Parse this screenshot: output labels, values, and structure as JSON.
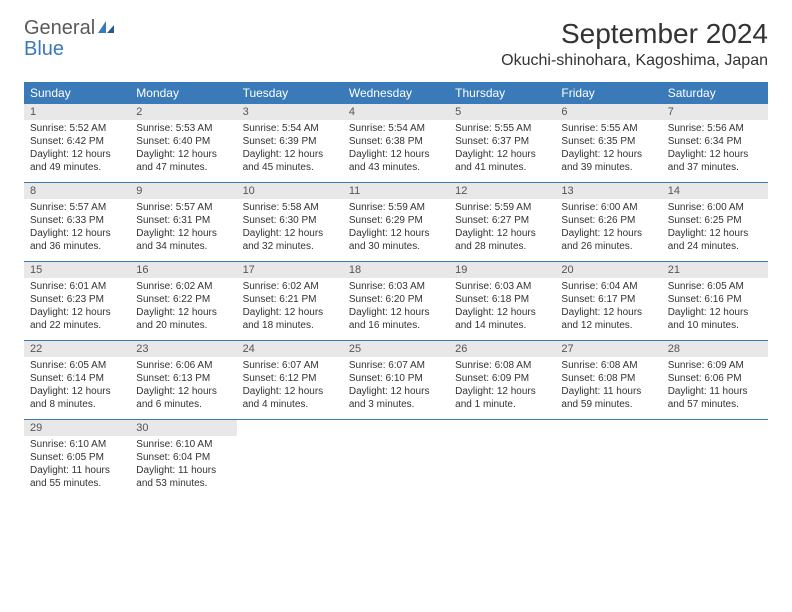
{
  "logo": {
    "text_general": "General",
    "text_blue": "Blue",
    "icon_color": "#3a7ab8"
  },
  "header": {
    "month_title": "September 2024",
    "location": "Okuchi-shinohara, Kagoshima, Japan"
  },
  "style": {
    "header_bg": "#3a7ab8",
    "header_text": "#ffffff",
    "daynum_bg": "#e8e8e8",
    "page_bg": "#ffffff",
    "border_color": "#3a7ab8",
    "body_font_size": 10,
    "title_font_size": 28
  },
  "weekdays": [
    "Sunday",
    "Monday",
    "Tuesday",
    "Wednesday",
    "Thursday",
    "Friday",
    "Saturday"
  ],
  "weeks": [
    [
      {
        "day": "1",
        "sunrise": "Sunrise: 5:52 AM",
        "sunset": "Sunset: 6:42 PM",
        "daylight1": "Daylight: 12 hours",
        "daylight2": "and 49 minutes."
      },
      {
        "day": "2",
        "sunrise": "Sunrise: 5:53 AM",
        "sunset": "Sunset: 6:40 PM",
        "daylight1": "Daylight: 12 hours",
        "daylight2": "and 47 minutes."
      },
      {
        "day": "3",
        "sunrise": "Sunrise: 5:54 AM",
        "sunset": "Sunset: 6:39 PM",
        "daylight1": "Daylight: 12 hours",
        "daylight2": "and 45 minutes."
      },
      {
        "day": "4",
        "sunrise": "Sunrise: 5:54 AM",
        "sunset": "Sunset: 6:38 PM",
        "daylight1": "Daylight: 12 hours",
        "daylight2": "and 43 minutes."
      },
      {
        "day": "5",
        "sunrise": "Sunrise: 5:55 AM",
        "sunset": "Sunset: 6:37 PM",
        "daylight1": "Daylight: 12 hours",
        "daylight2": "and 41 minutes."
      },
      {
        "day": "6",
        "sunrise": "Sunrise: 5:55 AM",
        "sunset": "Sunset: 6:35 PM",
        "daylight1": "Daylight: 12 hours",
        "daylight2": "and 39 minutes."
      },
      {
        "day": "7",
        "sunrise": "Sunrise: 5:56 AM",
        "sunset": "Sunset: 6:34 PM",
        "daylight1": "Daylight: 12 hours",
        "daylight2": "and 37 minutes."
      }
    ],
    [
      {
        "day": "8",
        "sunrise": "Sunrise: 5:57 AM",
        "sunset": "Sunset: 6:33 PM",
        "daylight1": "Daylight: 12 hours",
        "daylight2": "and 36 minutes."
      },
      {
        "day": "9",
        "sunrise": "Sunrise: 5:57 AM",
        "sunset": "Sunset: 6:31 PM",
        "daylight1": "Daylight: 12 hours",
        "daylight2": "and 34 minutes."
      },
      {
        "day": "10",
        "sunrise": "Sunrise: 5:58 AM",
        "sunset": "Sunset: 6:30 PM",
        "daylight1": "Daylight: 12 hours",
        "daylight2": "and 32 minutes."
      },
      {
        "day": "11",
        "sunrise": "Sunrise: 5:59 AM",
        "sunset": "Sunset: 6:29 PM",
        "daylight1": "Daylight: 12 hours",
        "daylight2": "and 30 minutes."
      },
      {
        "day": "12",
        "sunrise": "Sunrise: 5:59 AM",
        "sunset": "Sunset: 6:27 PM",
        "daylight1": "Daylight: 12 hours",
        "daylight2": "and 28 minutes."
      },
      {
        "day": "13",
        "sunrise": "Sunrise: 6:00 AM",
        "sunset": "Sunset: 6:26 PM",
        "daylight1": "Daylight: 12 hours",
        "daylight2": "and 26 minutes."
      },
      {
        "day": "14",
        "sunrise": "Sunrise: 6:00 AM",
        "sunset": "Sunset: 6:25 PM",
        "daylight1": "Daylight: 12 hours",
        "daylight2": "and 24 minutes."
      }
    ],
    [
      {
        "day": "15",
        "sunrise": "Sunrise: 6:01 AM",
        "sunset": "Sunset: 6:23 PM",
        "daylight1": "Daylight: 12 hours",
        "daylight2": "and 22 minutes."
      },
      {
        "day": "16",
        "sunrise": "Sunrise: 6:02 AM",
        "sunset": "Sunset: 6:22 PM",
        "daylight1": "Daylight: 12 hours",
        "daylight2": "and 20 minutes."
      },
      {
        "day": "17",
        "sunrise": "Sunrise: 6:02 AM",
        "sunset": "Sunset: 6:21 PM",
        "daylight1": "Daylight: 12 hours",
        "daylight2": "and 18 minutes."
      },
      {
        "day": "18",
        "sunrise": "Sunrise: 6:03 AM",
        "sunset": "Sunset: 6:20 PM",
        "daylight1": "Daylight: 12 hours",
        "daylight2": "and 16 minutes."
      },
      {
        "day": "19",
        "sunrise": "Sunrise: 6:03 AM",
        "sunset": "Sunset: 6:18 PM",
        "daylight1": "Daylight: 12 hours",
        "daylight2": "and 14 minutes."
      },
      {
        "day": "20",
        "sunrise": "Sunrise: 6:04 AM",
        "sunset": "Sunset: 6:17 PM",
        "daylight1": "Daylight: 12 hours",
        "daylight2": "and 12 minutes."
      },
      {
        "day": "21",
        "sunrise": "Sunrise: 6:05 AM",
        "sunset": "Sunset: 6:16 PM",
        "daylight1": "Daylight: 12 hours",
        "daylight2": "and 10 minutes."
      }
    ],
    [
      {
        "day": "22",
        "sunrise": "Sunrise: 6:05 AM",
        "sunset": "Sunset: 6:14 PM",
        "daylight1": "Daylight: 12 hours",
        "daylight2": "and 8 minutes."
      },
      {
        "day": "23",
        "sunrise": "Sunrise: 6:06 AM",
        "sunset": "Sunset: 6:13 PM",
        "daylight1": "Daylight: 12 hours",
        "daylight2": "and 6 minutes."
      },
      {
        "day": "24",
        "sunrise": "Sunrise: 6:07 AM",
        "sunset": "Sunset: 6:12 PM",
        "daylight1": "Daylight: 12 hours",
        "daylight2": "and 4 minutes."
      },
      {
        "day": "25",
        "sunrise": "Sunrise: 6:07 AM",
        "sunset": "Sunset: 6:10 PM",
        "daylight1": "Daylight: 12 hours",
        "daylight2": "and 3 minutes."
      },
      {
        "day": "26",
        "sunrise": "Sunrise: 6:08 AM",
        "sunset": "Sunset: 6:09 PM",
        "daylight1": "Daylight: 12 hours",
        "daylight2": "and 1 minute."
      },
      {
        "day": "27",
        "sunrise": "Sunrise: 6:08 AM",
        "sunset": "Sunset: 6:08 PM",
        "daylight1": "Daylight: 11 hours",
        "daylight2": "and 59 minutes."
      },
      {
        "day": "28",
        "sunrise": "Sunrise: 6:09 AM",
        "sunset": "Sunset: 6:06 PM",
        "daylight1": "Daylight: 11 hours",
        "daylight2": "and 57 minutes."
      }
    ],
    [
      {
        "day": "29",
        "sunrise": "Sunrise: 6:10 AM",
        "sunset": "Sunset: 6:05 PM",
        "daylight1": "Daylight: 11 hours",
        "daylight2": "and 55 minutes."
      },
      {
        "day": "30",
        "sunrise": "Sunrise: 6:10 AM",
        "sunset": "Sunset: 6:04 PM",
        "daylight1": "Daylight: 11 hours",
        "daylight2": "and 53 minutes."
      },
      null,
      null,
      null,
      null,
      null
    ]
  ]
}
